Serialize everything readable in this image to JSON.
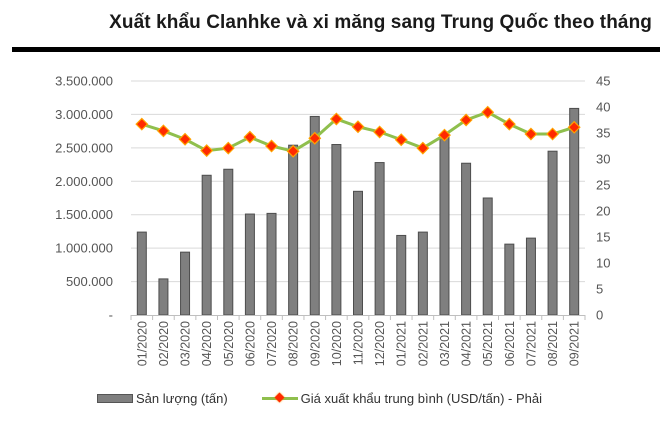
{
  "header": {
    "title": "Xuất khẩu Clanhke và xi măng sang Trung Quốc theo tháng"
  },
  "legend": {
    "bar_label": "Sản lượng (tấn)",
    "line_label": "Giá xuất khẩu trung bình (USD/tấn) - Phải"
  },
  "colors": {
    "bar_fill": "#7f7f7f",
    "bar_stroke": "#4d4d4d",
    "line": "#8fbf4d",
    "marker": "#ff2a00",
    "grid": "#d9d9d9"
  },
  "chart_data": {
    "type": "bar",
    "title": "Xuất khẩu Clanhke và xi măng sang Trung Quốc theo tháng",
    "xlabel": "",
    "ylabel": "",
    "categories": [
      "01/2020",
      "02/2020",
      "03/2020",
      "04/2020",
      "05/2020",
      "06/2020",
      "07/2020",
      "08/2020",
      "09/2020",
      "10/2020",
      "11/2020",
      "12/2020",
      "01/2021",
      "02/2021",
      "03/2021",
      "04/2021",
      "05/2021",
      "06/2021",
      "07/2021",
      "08/2021",
      "09/2021"
    ],
    "series": [
      {
        "name": "Sản lượng (tấn)",
        "type": "bar",
        "axis": "left",
        "values": [
          1240000,
          540000,
          940000,
          2090000,
          2180000,
          1510000,
          1520000,
          2540000,
          2970000,
          2550000,
          1850000,
          2280000,
          1190000,
          1240000,
          2690000,
          2270000,
          1750000,
          1060000,
          1150000,
          2450000,
          3090000
        ]
      },
      {
        "name": "Giá xuất khẩu trung bình (USD/tấn) - Phải",
        "type": "line",
        "axis": "right",
        "values": [
          36.7,
          35.4,
          33.8,
          31.6,
          32.1,
          34.2,
          32.5,
          31.5,
          34.0,
          37.7,
          36.2,
          35.2,
          33.7,
          32.1,
          34.6,
          37.5,
          39.0,
          36.7,
          34.8,
          34.8,
          36.1
        ]
      }
    ],
    "ylim": [
      0,
      3500000
    ],
    "y2lim": [
      0,
      45
    ],
    "y_ticks": [
      "-",
      "500.000",
      "1.000.000",
      "1.500.000",
      "2.000.000",
      "2.500.000",
      "3.000.000",
      "3.500.000"
    ],
    "y2_ticks": [
      "0",
      "5",
      "10",
      "15",
      "20",
      "25",
      "30",
      "35",
      "40",
      "45"
    ],
    "grid": true,
    "legend_position": "bottom"
  }
}
